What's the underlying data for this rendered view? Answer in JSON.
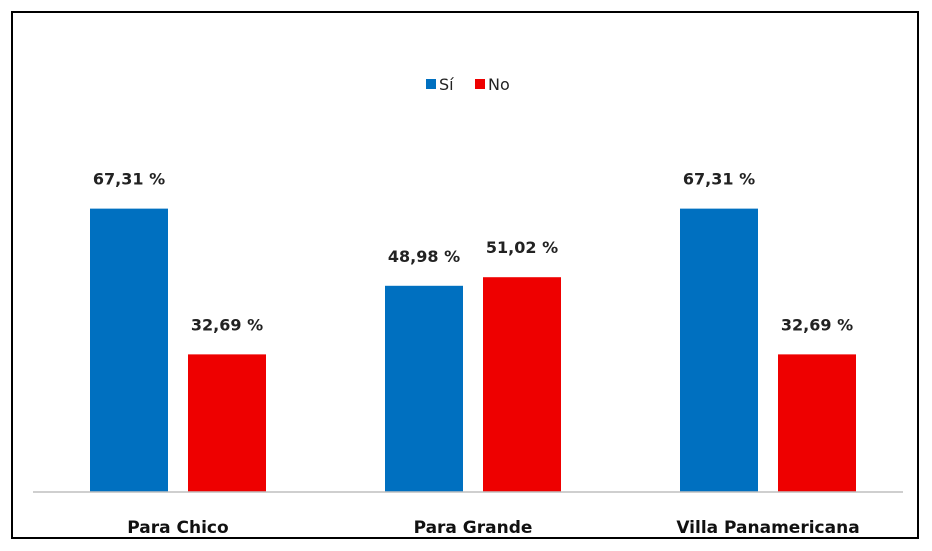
{
  "chart_data": {
    "type": "bar",
    "categories": [
      "Para Chico",
      "Para Grande",
      "Villa Panamericana"
    ],
    "series": [
      {
        "name": "Sí",
        "values": [
          67.31,
          48.98,
          67.31
        ],
        "labels": [
          "67,31 %",
          "48,98 %",
          "67,31 %"
        ],
        "color": "#0070c0"
      },
      {
        "name": "No",
        "values": [
          32.69,
          51.02,
          32.69
        ],
        "labels": [
          "32,69 %",
          "51,02 %",
          "32,69 %"
        ],
        "color": "#ee0000"
      }
    ],
    "ylim": [
      0,
      100
    ],
    "grid": false,
    "legend": "top-center",
    "axis_color": "#bfbfbf"
  }
}
